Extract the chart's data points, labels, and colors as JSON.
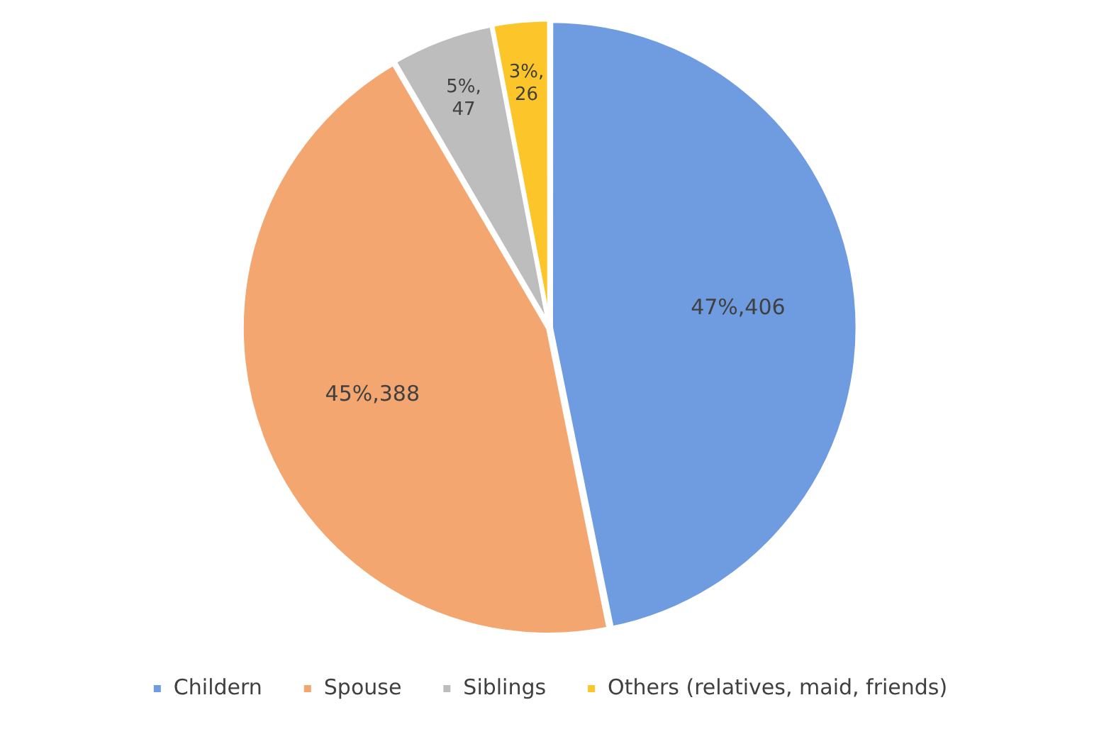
{
  "chart_data": {
    "type": "pie",
    "categories": [
      "Childern",
      "Spouse",
      "Siblings",
      "Others (relatives, maid, friends)"
    ],
    "values": [
      406,
      388,
      47,
      26
    ],
    "colors": [
      "#6f9be0",
      "#f4a671",
      "#bdbdbd",
      "#fcc62a"
    ],
    "value_labels": [
      "47%,406",
      "45%,388",
      "5%,47",
      "3%,26"
    ],
    "legend": "bottom"
  }
}
